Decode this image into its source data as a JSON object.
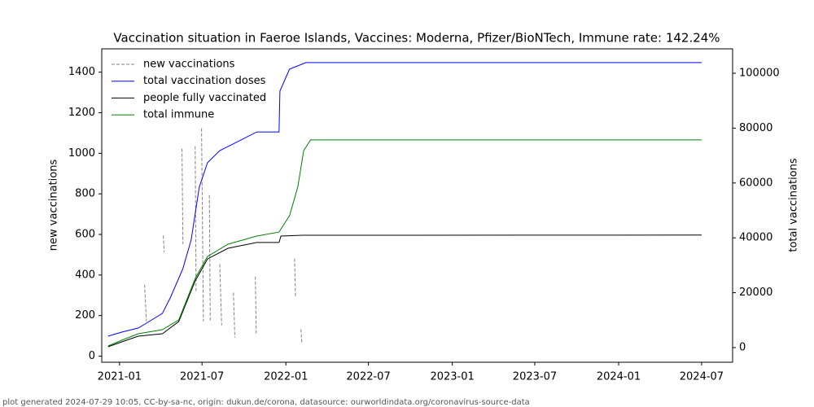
{
  "chart_data": {
    "type": "line",
    "title": "Vaccination situation in Faeroe Islands, Vaccines: Moderna, Pfizer/BioNTech, Immune rate: 142.24%",
    "ylabel": "new vaccinations",
    "y2label": "total vaccinations",
    "footer": "plot generated 2024-07-29 10:05, CC-by-sa-nc, origin: dukun.de/corona, datasource: ourworldindata.org/coronavirus-source-data",
    "xlim": [
      "2020-11-23",
      "2024-09-07"
    ],
    "xticks": [
      {
        "value": "2021-01-01",
        "label": "2021-01"
      },
      {
        "value": "2021-07-01",
        "label": "2021-07"
      },
      {
        "value": "2022-01-01",
        "label": "2022-01"
      },
      {
        "value": "2022-07-01",
        "label": "2022-07"
      },
      {
        "value": "2023-01-01",
        "label": "2023-01"
      },
      {
        "value": "2023-07-01",
        "label": "2023-07"
      },
      {
        "value": "2024-01-01",
        "label": "2024-01"
      },
      {
        "value": "2024-07-01",
        "label": "2024-07"
      }
    ],
    "ylim": [
      -30,
      1515
    ],
    "yticks": [
      0,
      200,
      400,
      600,
      800,
      1000,
      1200,
      1400
    ],
    "y2lim": [
      -5340,
      108900
    ],
    "y2ticks": [
      0,
      20000,
      40000,
      60000,
      80000,
      100000
    ],
    "legend": "upper left",
    "series": [
      {
        "name": "new vaccinations",
        "color": "#808080",
        "dashed": true,
        "axis": "y",
        "x": [
          "2021-02-25",
          "2021-03-01",
          "2021-03-02",
          "2021-04-07",
          "2021-04-09",
          "2021-04-10",
          "2021-05-18",
          "2021-05-20",
          "2021-05-21",
          "2021-06-16",
          "2021-06-18",
          "2021-06-19",
          "2021-06-30",
          "2021-07-04",
          "2021-07-05",
          "2021-07-17",
          "2021-07-19",
          "2021-07-20",
          "2021-08-09",
          "2021-08-13",
          "2021-08-14",
          "2021-09-08",
          "2021-09-11",
          "2021-09-12",
          "2021-10-26",
          "2021-10-28",
          "2021-10-29",
          "2022-01-20",
          "2022-01-22",
          "2022-01-23",
          "2022-02-03",
          "2022-02-05"
        ],
        "values": [
          353,
          172,
          null,
          594,
          513,
          null,
          1023,
          553,
          null,
          1035,
          313,
          null,
          1123,
          172,
          null,
          794,
          172,
          null,
          453,
          152,
          null,
          313,
          92,
          null,
          393,
          112,
          null,
          481,
          293,
          null,
          132,
          64
        ]
      },
      {
        "name": "total vaccination doses",
        "color": "#0000ff",
        "axis": "y2",
        "x": [
          "2020-12-07",
          "2021-01-06",
          "2021-02-11",
          "2021-03-01",
          "2021-04-05",
          "2021-04-23",
          "2021-05-20",
          "2021-06-07",
          "2021-06-25",
          "2021-07-13",
          "2021-08-09",
          "2021-09-14",
          "2021-10-29",
          "2021-12-17",
          "2021-12-19",
          "2022-01-09",
          "2022-02-14",
          "2024-07-01"
        ],
        "values": [
          4150,
          5640,
          7120,
          8900,
          12460,
          18400,
          28800,
          39200,
          58500,
          67400,
          71800,
          74800,
          78600,
          78600,
          93500,
          101500,
          103900,
          103900
        ]
      },
      {
        "name": "people fully vaccinated",
        "color": "#000000",
        "axis": "y2",
        "x": [
          "2020-12-07",
          "2021-01-06",
          "2021-02-11",
          "2021-04-05",
          "2021-05-11",
          "2021-06-16",
          "2021-07-13",
          "2021-08-27",
          "2021-10-29",
          "2021-12-17",
          "2021-12-21",
          "2022-02-06",
          "2024-07-01"
        ],
        "values": [
          300,
          2080,
          4150,
          5040,
          9500,
          24300,
          32300,
          36200,
          38300,
          38300,
          40650,
          40950,
          41000
        ]
      },
      {
        "name": "total immune",
        "color": "#008000",
        "axis": "y2",
        "x": [
          "2020-12-07",
          "2021-01-06",
          "2021-02-11",
          "2021-04-05",
          "2021-05-11",
          "2021-06-16",
          "2021-07-13",
          "2021-08-27",
          "2021-10-29",
          "2021-12-17",
          "2022-01-09",
          "2022-01-27",
          "2022-02-09",
          "2022-02-24",
          "2024-07-01"
        ],
        "values": [
          600,
          2670,
          5040,
          6530,
          10100,
          25200,
          33200,
          37700,
          40650,
          42100,
          48100,
          58500,
          71800,
          75700,
          75700
        ]
      }
    ]
  }
}
